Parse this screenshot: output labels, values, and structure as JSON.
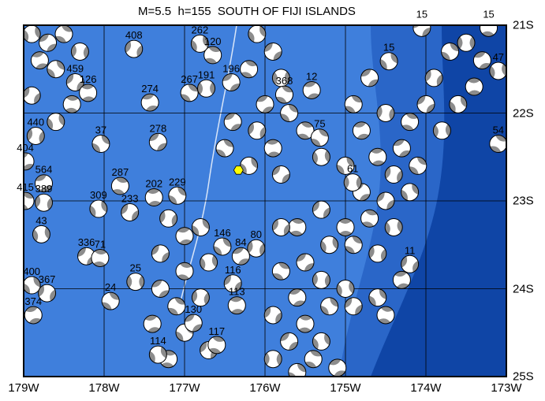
{
  "title": "M=5.5  h=155  SOUTH OF FIJI ISLANDS",
  "map": {
    "lon_range": [
      -179,
      -173
    ],
    "lat_range": [
      -25,
      -21
    ],
    "x_ticks": [
      {
        "v": -179,
        "label": "179W"
      },
      {
        "v": -178,
        "label": "178W"
      },
      {
        "v": -177,
        "label": "177W"
      },
      {
        "v": -176,
        "label": "176W"
      },
      {
        "v": -175,
        "label": "175W"
      },
      {
        "v": -174,
        "label": "174W"
      },
      {
        "v": -173,
        "label": "173W"
      }
    ],
    "y_ticks": [
      {
        "v": -21,
        "label": "21S"
      },
      {
        "v": -22,
        "label": "22S"
      },
      {
        "v": -23,
        "label": "23S"
      },
      {
        "v": -24,
        "label": "24S"
      },
      {
        "v": -25,
        "label": "25S"
      }
    ],
    "grid": true,
    "colors": {
      "shallow": "#3f7fdc",
      "mid": "#2a66c8",
      "deep": "#0f45a6",
      "ball_fill": "#8c8c8c",
      "epicenter": "#ffff00"
    },
    "epicenter": {
      "lon": -176.33,
      "lat": -22.65
    }
  },
  "labeled_events": [
    {
      "lon": -177.63,
      "lat": -21.27,
      "depth": "408"
    },
    {
      "lon": -177.43,
      "lat": -21.88,
      "depth": "274"
    },
    {
      "lon": -176.94,
      "lat": -21.77,
      "depth": "267"
    },
    {
      "lon": -176.73,
      "lat": -21.72,
      "depth": "191"
    },
    {
      "lon": -177.33,
      "lat": -22.33,
      "depth": "278"
    },
    {
      "lon": -177.8,
      "lat": -22.83,
      "depth": "287"
    },
    {
      "lon": -178.07,
      "lat": -23.09,
      "depth": "309"
    },
    {
      "lon": -177.68,
      "lat": -23.13,
      "depth": "233"
    },
    {
      "lon": -177.38,
      "lat": -22.96,
      "depth": "202"
    },
    {
      "lon": -177.09,
      "lat": -22.94,
      "depth": "229"
    },
    {
      "lon": -178.75,
      "lat": -23.02,
      "depth": "389"
    },
    {
      "lon": -178.75,
      "lat": -22.8,
      "depth": "564"
    },
    {
      "lon": -178.98,
      "lat": -23.0,
      "depth": "415"
    },
    {
      "lon": -178.78,
      "lat": -23.38,
      "depth": "43"
    },
    {
      "lon": -178.22,
      "lat": -23.63,
      "depth": "336"
    },
    {
      "lon": -178.05,
      "lat": -23.65,
      "depth": "71"
    },
    {
      "lon": -178.9,
      "lat": -23.96,
      "depth": "400"
    },
    {
      "lon": -178.71,
      "lat": -24.05,
      "depth": "367"
    },
    {
      "lon": -178.88,
      "lat": -24.3,
      "depth": "374"
    },
    {
      "lon": -177.92,
      "lat": -24.14,
      "depth": "24"
    },
    {
      "lon": -177.61,
      "lat": -23.92,
      "depth": "25"
    },
    {
      "lon": -176.89,
      "lat": -24.39,
      "depth": "130"
    },
    {
      "lon": -176.6,
      "lat": -24.64,
      "depth": "117"
    },
    {
      "lon": -177.33,
      "lat": -24.75,
      "depth": "114"
    },
    {
      "lon": -176.4,
      "lat": -23.94,
      "depth": "116"
    },
    {
      "lon": -176.35,
      "lat": -24.19,
      "depth": "113"
    },
    {
      "lon": -176.53,
      "lat": -23.52,
      "depth": "146"
    },
    {
      "lon": -176.11,
      "lat": -23.54,
      "depth": "80"
    },
    {
      "lon": -176.3,
      "lat": -23.63,
      "depth": "84"
    },
    {
      "lon": -173.1,
      "lat": -22.35,
      "depth": "54"
    },
    {
      "lon": -173.1,
      "lat": -21.52,
      "depth": "47"
    },
    {
      "lon": -174.05,
      "lat": -21.03,
      "depth": "15"
    },
    {
      "lon": -173.22,
      "lat": -21.03,
      "depth": "15"
    },
    {
      "lon": -174.46,
      "lat": -21.41,
      "depth": "15"
    },
    {
      "lon": -174.2,
      "lat": -23.72,
      "depth": "11"
    },
    {
      "lon": -175.42,
      "lat": -21.74,
      "depth": "12"
    },
    {
      "lon": -175.32,
      "lat": -22.28,
      "depth": "75"
    },
    {
      "lon": -174.91,
      "lat": -22.79,
      "depth": "61"
    },
    {
      "lon": -176.42,
      "lat": -21.65,
      "depth": "196"
    },
    {
      "lon": -176.65,
      "lat": -21.34,
      "depth": "120"
    },
    {
      "lon": -176.81,
      "lat": -21.21,
      "depth": "262"
    },
    {
      "lon": -178.36,
      "lat": -21.65,
      "depth": "459"
    },
    {
      "lon": -178.2,
      "lat": -21.77,
      "depth": "126"
    },
    {
      "lon": -178.04,
      "lat": -22.35,
      "depth": "37"
    },
    {
      "lon": -178.85,
      "lat": -22.26,
      "depth": "440"
    },
    {
      "lon": -178.98,
      "lat": -22.55,
      "depth": "404"
    },
    {
      "lon": -175.76,
      "lat": -21.79,
      "depth": "368"
    }
  ],
  "unlabeled_events": [
    [
      -173.5,
      -21.2
    ],
    [
      -173.3,
      -21.4
    ],
    [
      -173.7,
      -21.3
    ],
    [
      -173.9,
      -21.6
    ],
    [
      -173.4,
      -21.7
    ],
    [
      -173.6,
      -21.9
    ],
    [
      -174.0,
      -21.9
    ],
    [
      -174.2,
      -22.1
    ],
    [
      -173.8,
      -22.2
    ],
    [
      -174.3,
      -22.4
    ],
    [
      -174.1,
      -22.6
    ],
    [
      -174.4,
      -22.7
    ],
    [
      -174.6,
      -22.5
    ],
    [
      -174.2,
      -22.9
    ],
    [
      -174.5,
      -23.0
    ],
    [
      -174.7,
      -23.2
    ],
    [
      -174.4,
      -23.3
    ],
    [
      -174.8,
      -22.9
    ],
    [
      -174.9,
      -23.5
    ],
    [
      -174.6,
      -23.6
    ],
    [
      -174.3,
      -23.9
    ],
    [
      -174.6,
      -24.1
    ],
    [
      -174.9,
      -24.2
    ],
    [
      -174.5,
      -24.3
    ],
    [
      -175.0,
      -24.0
    ],
    [
      -174.7,
      -21.6
    ],
    [
      -174.9,
      -21.9
    ],
    [
      -174.5,
      -22.0
    ],
    [
      -174.8,
      -22.2
    ],
    [
      -175.0,
      -22.6
    ],
    [
      -175.3,
      -23.1
    ],
    [
      -175.6,
      -23.3
    ],
    [
      -175.2,
      -23.5
    ],
    [
      -175.5,
      -23.7
    ],
    [
      -175.8,
      -23.8
    ],
    [
      -175.3,
      -23.9
    ],
    [
      -175.6,
      -24.1
    ],
    [
      -175.2,
      -24.2
    ],
    [
      -175.9,
      -24.3
    ],
    [
      -175.5,
      -24.4
    ],
    [
      -175.3,
      -24.6
    ],
    [
      -175.7,
      -24.6
    ],
    [
      -175.4,
      -24.8
    ],
    [
      -175.9,
      -24.8
    ],
    [
      -175.1,
      -24.9
    ],
    [
      -175.6,
      -24.95
    ],
    [
      -175.8,
      -23.3
    ],
    [
      -175.0,
      -23.3
    ],
    [
      -176.1,
      -21.1
    ],
    [
      -175.9,
      -21.3
    ],
    [
      -176.2,
      -21.5
    ],
    [
      -175.8,
      -21.6
    ],
    [
      -176.0,
      -21.9
    ],
    [
      -175.7,
      -22.0
    ],
    [
      -176.1,
      -22.2
    ],
    [
      -175.9,
      -22.4
    ],
    [
      -176.2,
      -22.6
    ],
    [
      -175.8,
      -22.7
    ],
    [
      -175.5,
      -22.2
    ],
    [
      -175.3,
      -22.5
    ],
    [
      -176.4,
      -22.1
    ],
    [
      -176.5,
      -22.4
    ],
    [
      -177.2,
      -23.2
    ],
    [
      -177.0,
      -23.4
    ],
    [
      -176.8,
      -23.3
    ],
    [
      -177.3,
      -23.6
    ],
    [
      -177.0,
      -23.8
    ],
    [
      -176.7,
      -23.7
    ],
    [
      -177.3,
      -24.0
    ],
    [
      -177.1,
      -24.2
    ],
    [
      -176.8,
      -24.1
    ],
    [
      -177.4,
      -24.4
    ],
    [
      -177.0,
      -24.5
    ],
    [
      -176.7,
      -24.7
    ],
    [
      -177.2,
      -24.8
    ],
    [
      -178.9,
      -21.1
    ],
    [
      -178.7,
      -21.2
    ],
    [
      -178.5,
      -21.1
    ],
    [
      -178.3,
      -21.3
    ],
    [
      -178.8,
      -21.4
    ],
    [
      -178.6,
      -21.5
    ],
    [
      -178.9,
      -21.8
    ],
    [
      -178.4,
      -21.9
    ],
    [
      -178.6,
      -22.1
    ]
  ]
}
